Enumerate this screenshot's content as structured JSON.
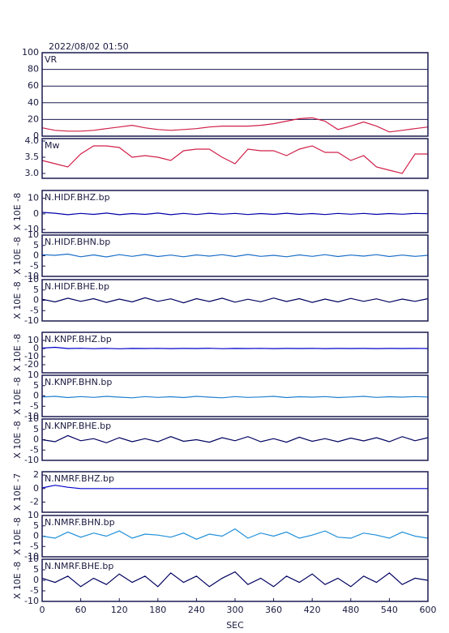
{
  "header": {
    "title": "2022/08/02 01:50"
  },
  "chart_data": [
    {
      "type": "line",
      "title": "VR",
      "x": [
        0,
        20,
        40,
        60,
        80,
        100,
        120,
        140,
        160,
        180,
        200,
        220,
        240,
        260,
        280,
        300,
        320,
        340,
        360,
        380,
        400,
        420,
        440,
        460,
        480,
        500,
        520,
        540,
        560,
        580,
        600
      ],
      "xlim": [
        0,
        600
      ],
      "ylim": [
        0,
        100
      ],
      "yticks": [
        0,
        20,
        40,
        60,
        80,
        100
      ],
      "grid": true,
      "series": [
        {
          "color": "#d0204a",
          "values": [
            10,
            7,
            6,
            6,
            7,
            9,
            11,
            13,
            10,
            8,
            7,
            8,
            9,
            11,
            12,
            12,
            12,
            13,
            15,
            18,
            21,
            22,
            18,
            8,
            12,
            17,
            12,
            5,
            7,
            9,
            11
          ]
        }
      ]
    },
    {
      "type": "line",
      "title": "Mw",
      "x": [
        0,
        20,
        40,
        60,
        80,
        100,
        120,
        140,
        160,
        180,
        200,
        220,
        240,
        260,
        280,
        300,
        320,
        340,
        360,
        380,
        400,
        420,
        440,
        460,
        480,
        500,
        520,
        540,
        560,
        580,
        600
      ],
      "xlim": [
        0,
        600
      ],
      "ylim": [
        2.85,
        4.075
      ],
      "yticks": [
        {
          "value": 3.0,
          "label": "3.0"
        },
        {
          "value": 3.5,
          "label": "3.5"
        },
        {
          "value": 4.0,
          "label": "4.0"
        }
      ],
      "grid": false,
      "series": [
        {
          "color": "#d0204a",
          "values": [
            3.4,
            3.3,
            3.2,
            3.6,
            3.85,
            3.85,
            3.8,
            3.5,
            3.55,
            3.5,
            3.4,
            3.7,
            3.75,
            3.75,
            3.5,
            3.3,
            3.75,
            3.7,
            3.7,
            3.55,
            3.75,
            3.85,
            3.65,
            3.65,
            3.4,
            3.55,
            3.2,
            3.1,
            3.0,
            3.6,
            3.6
          ]
        }
      ]
    },
    {
      "type": "line",
      "title": "N.HIDF.BHZ.bp",
      "ylabel": "X 10E -8",
      "x": [
        0,
        20,
        40,
        60,
        80,
        100,
        120,
        140,
        160,
        180,
        200,
        220,
        240,
        260,
        280,
        300,
        320,
        340,
        360,
        380,
        400,
        420,
        440,
        460,
        480,
        500,
        520,
        540,
        560,
        580,
        600
      ],
      "xlim": [
        0,
        600
      ],
      "ylim": [
        -12,
        15
      ],
      "yticks": [
        -10,
        0,
        10
      ],
      "grid": false,
      "series": [
        {
          "color": "#0000aa",
          "values": [
            1,
            0.4,
            -0.5,
            0.3,
            -0.3,
            0.5,
            -0.5,
            0.2,
            -0.3,
            0.5,
            -0.5,
            0.3,
            -0.4,
            0.4,
            -0.2,
            0.3,
            -0.4,
            0.2,
            -0.3,
            0.4,
            -0.3,
            0.2,
            -0.4,
            0.3,
            -0.2,
            0.3,
            -0.3,
            0.2,
            -0.2,
            0.3,
            0.1
          ]
        }
      ]
    },
    {
      "type": "line",
      "title": "N.HIDF.BHN.bp",
      "ylabel": "X 10E -8",
      "x": [
        0,
        20,
        40,
        60,
        80,
        100,
        120,
        140,
        160,
        180,
        200,
        220,
        240,
        260,
        280,
        300,
        320,
        340,
        360,
        380,
        400,
        420,
        440,
        460,
        480,
        500,
        520,
        540,
        560,
        580,
        600
      ],
      "xlim": [
        0,
        600
      ],
      "ylim": [
        -10,
        10
      ],
      "yticks": [
        -10,
        -5,
        0,
        5,
        10
      ],
      "grid": false,
      "series": [
        {
          "color": "#1a6ec8",
          "values": [
            0.5,
            0.2,
            0.8,
            -0.5,
            0.4,
            -0.6,
            0.5,
            -0.3,
            0.6,
            -0.4,
            0.3,
            -0.5,
            0.4,
            -0.2,
            0.5,
            -0.4,
            0.6,
            -0.3,
            0.2,
            -0.5,
            0.4,
            -0.3,
            0.5,
            -0.4,
            0.3,
            -0.2,
            0.5,
            -0.4,
            0.3,
            -0.3,
            0.2
          ]
        }
      ]
    },
    {
      "type": "line",
      "title": "N.HIDF.BHE.bp",
      "ylabel": "X 10E -8",
      "x": [
        0,
        20,
        40,
        60,
        80,
        100,
        120,
        140,
        160,
        180,
        200,
        220,
        240,
        260,
        280,
        300,
        320,
        340,
        360,
        380,
        400,
        420,
        440,
        460,
        480,
        500,
        520,
        540,
        560,
        580,
        600
      ],
      "xlim": [
        0,
        600
      ],
      "ylim": [
        -10,
        10
      ],
      "yticks": [
        -10,
        -5,
        0,
        5,
        10
      ],
      "grid": false,
      "series": [
        {
          "color": "#000060",
          "values": [
            0.5,
            -0.8,
            1,
            -0.5,
            0.8,
            -1,
            0.6,
            -0.8,
            1.2,
            -0.5,
            0.7,
            -1.2,
            0.8,
            -0.6,
            1,
            -0.9,
            0.5,
            -0.7,
            1.1,
            -0.6,
            0.8,
            -1,
            0.6,
            -0.8,
            0.9,
            -0.5,
            0.7,
            -0.9,
            0.6,
            -0.5,
            0.8
          ]
        }
      ]
    },
    {
      "type": "line",
      "title": "N.KNPF.BHZ.bp",
      "ylabel": "X 10E -8",
      "x": [
        0,
        20,
        40,
        60,
        80,
        100,
        120,
        140,
        160,
        180,
        200,
        220,
        240,
        260,
        280,
        300,
        320,
        340,
        360,
        380,
        400,
        420,
        440,
        460,
        480,
        500,
        520,
        540,
        560,
        580,
        600
      ],
      "xlim": [
        0,
        600
      ],
      "ylim": [
        -30,
        20
      ],
      "yticks": [
        -20,
        -10,
        0,
        10
      ],
      "grid": false,
      "series": [
        {
          "color": "#0000cc",
          "values": [
            0.5,
            1.5,
            0,
            0.3,
            -0.2,
            0.2,
            -0.3,
            0.1,
            0,
            0.2,
            -0.1,
            0.1,
            0,
            0.3,
            -0.2,
            0.1,
            0,
            0.2,
            -0.1,
            0.1,
            0,
            0.2,
            -0.1,
            0.1,
            0,
            0.1,
            -0.1,
            0.1,
            0,
            0.2,
            0
          ]
        }
      ]
    },
    {
      "type": "line",
      "title": "N.KNPF.BHN.bp",
      "ylabel": "X 10E -8",
      "x": [
        0,
        20,
        40,
        60,
        80,
        100,
        120,
        140,
        160,
        180,
        200,
        220,
        240,
        260,
        280,
        300,
        320,
        340,
        360,
        380,
        400,
        420,
        440,
        460,
        480,
        500,
        520,
        540,
        560,
        580,
        600
      ],
      "xlim": [
        0,
        600
      ],
      "ylim": [
        -10,
        10
      ],
      "yticks": [
        -10,
        -5,
        0,
        5,
        10
      ],
      "grid": false,
      "series": [
        {
          "color": "#2080d0",
          "values": [
            -0.5,
            -0.2,
            -0.8,
            -0.3,
            -0.7,
            -0.2,
            -0.6,
            -0.9,
            -0.3,
            -0.7,
            -0.4,
            -0.8,
            -0.2,
            -0.6,
            -0.9,
            -0.3,
            -0.7,
            -0.5,
            -0.2,
            -0.8,
            -0.4,
            -0.6,
            -0.3,
            -0.8,
            -0.5,
            -0.2,
            -0.7,
            -0.4,
            -0.6,
            -0.3,
            -0.5
          ]
        }
      ]
    },
    {
      "type": "line",
      "title": "N.KNPF.BHE.bp",
      "ylabel": "X 10E -8",
      "x": [
        0,
        20,
        40,
        60,
        80,
        100,
        120,
        140,
        160,
        180,
        200,
        220,
        240,
        260,
        280,
        300,
        320,
        340,
        360,
        380,
        400,
        420,
        440,
        460,
        480,
        500,
        520,
        540,
        560,
        580,
        600
      ],
      "xlim": [
        0,
        600
      ],
      "ylim": [
        -10,
        10
      ],
      "yticks": [
        -10,
        -5,
        0,
        5,
        10
      ],
      "grid": false,
      "series": [
        {
          "color": "#000060",
          "values": [
            0,
            -1,
            2,
            -0.5,
            0.5,
            -1.5,
            1,
            -1,
            0.5,
            -1,
            1.5,
            -0.8,
            0,
            -1.2,
            1,
            -0.5,
            1.5,
            -1,
            0.5,
            -1.2,
            1.2,
            -0.8,
            0.5,
            -1,
            0.8,
            -0.6,
            1,
            -1,
            1.5,
            -0.5,
            1
          ]
        }
      ]
    },
    {
      "type": "line",
      "title": "N.NMRF.BHZ.bp",
      "ylabel": "X 10E -7",
      "x": [
        0,
        20,
        40,
        60,
        80,
        100,
        120,
        140,
        160,
        180,
        200,
        220,
        240,
        260,
        280,
        300,
        320,
        340,
        360,
        380,
        400,
        420,
        440,
        460,
        480,
        500,
        520,
        540,
        560,
        580,
        600
      ],
      "xlim": [
        0,
        600
      ],
      "ylim": [
        -3.5,
        2.5
      ],
      "yticks": [
        -2,
        0,
        2
      ],
      "grid": false,
      "series": [
        {
          "color": "#0000cc",
          "values": [
            0.1,
            0.5,
            0.2,
            0,
            0,
            0,
            0,
            0,
            0,
            0,
            0,
            0,
            0,
            0,
            0,
            0,
            0,
            0,
            0,
            0,
            0,
            0,
            0,
            0,
            0,
            0,
            0,
            0,
            0,
            0,
            0
          ]
        }
      ]
    },
    {
      "type": "line",
      "title": "N.NMRF.BHN.bp",
      "ylabel": "X 10E -8",
      "x": [
        0,
        20,
        40,
        60,
        80,
        100,
        120,
        140,
        160,
        180,
        200,
        220,
        240,
        260,
        280,
        300,
        320,
        340,
        360,
        380,
        400,
        420,
        440,
        460,
        480,
        500,
        520,
        540,
        560,
        580,
        600
      ],
      "xlim": [
        0,
        600
      ],
      "ylim": [
        -10,
        10
      ],
      "yticks": [
        -10,
        -5,
        0,
        5,
        10
      ],
      "grid": false,
      "series": [
        {
          "color": "#2090d8",
          "values": [
            0,
            -1,
            2,
            -0.5,
            1.5,
            0,
            2.5,
            -1,
            1,
            0.5,
            -0.5,
            1.5,
            -1.5,
            1,
            0,
            3.5,
            -1,
            1.5,
            0,
            2,
            -1,
            0.5,
            2.5,
            -0.5,
            -1,
            1.5,
            0.5,
            -1,
            2,
            0,
            -1
          ]
        }
      ]
    },
    {
      "type": "line",
      "title": "N.NMRF.BHE.bp",
      "ylabel": "X 10E -8",
      "x": [
        0,
        20,
        40,
        60,
        80,
        100,
        120,
        140,
        160,
        180,
        200,
        220,
        240,
        260,
        280,
        300,
        320,
        340,
        360,
        380,
        400,
        420,
        440,
        460,
        480,
        500,
        520,
        540,
        560,
        580,
        600
      ],
      "xlim": [
        0,
        600
      ],
      "ylim": [
        -10,
        10
      ],
      "yticks": [
        -10,
        -5,
        0,
        5,
        10
      ],
      "xticks": [
        0,
        60,
        120,
        180,
        240,
        300,
        360,
        420,
        480,
        540,
        600
      ],
      "xlabel": "SEC",
      "grid": false,
      "series": [
        {
          "color": "#000060",
          "values": [
            1,
            -1,
            2,
            -3,
            1,
            -2,
            3,
            -1,
            2,
            -3,
            3.5,
            -1,
            2,
            -3,
            1,
            4,
            -2,
            1,
            -3,
            2,
            -1,
            3,
            -2,
            1,
            -3,
            2,
            -1,
            3.5,
            -2,
            1,
            0
          ]
        }
      ]
    }
  ]
}
